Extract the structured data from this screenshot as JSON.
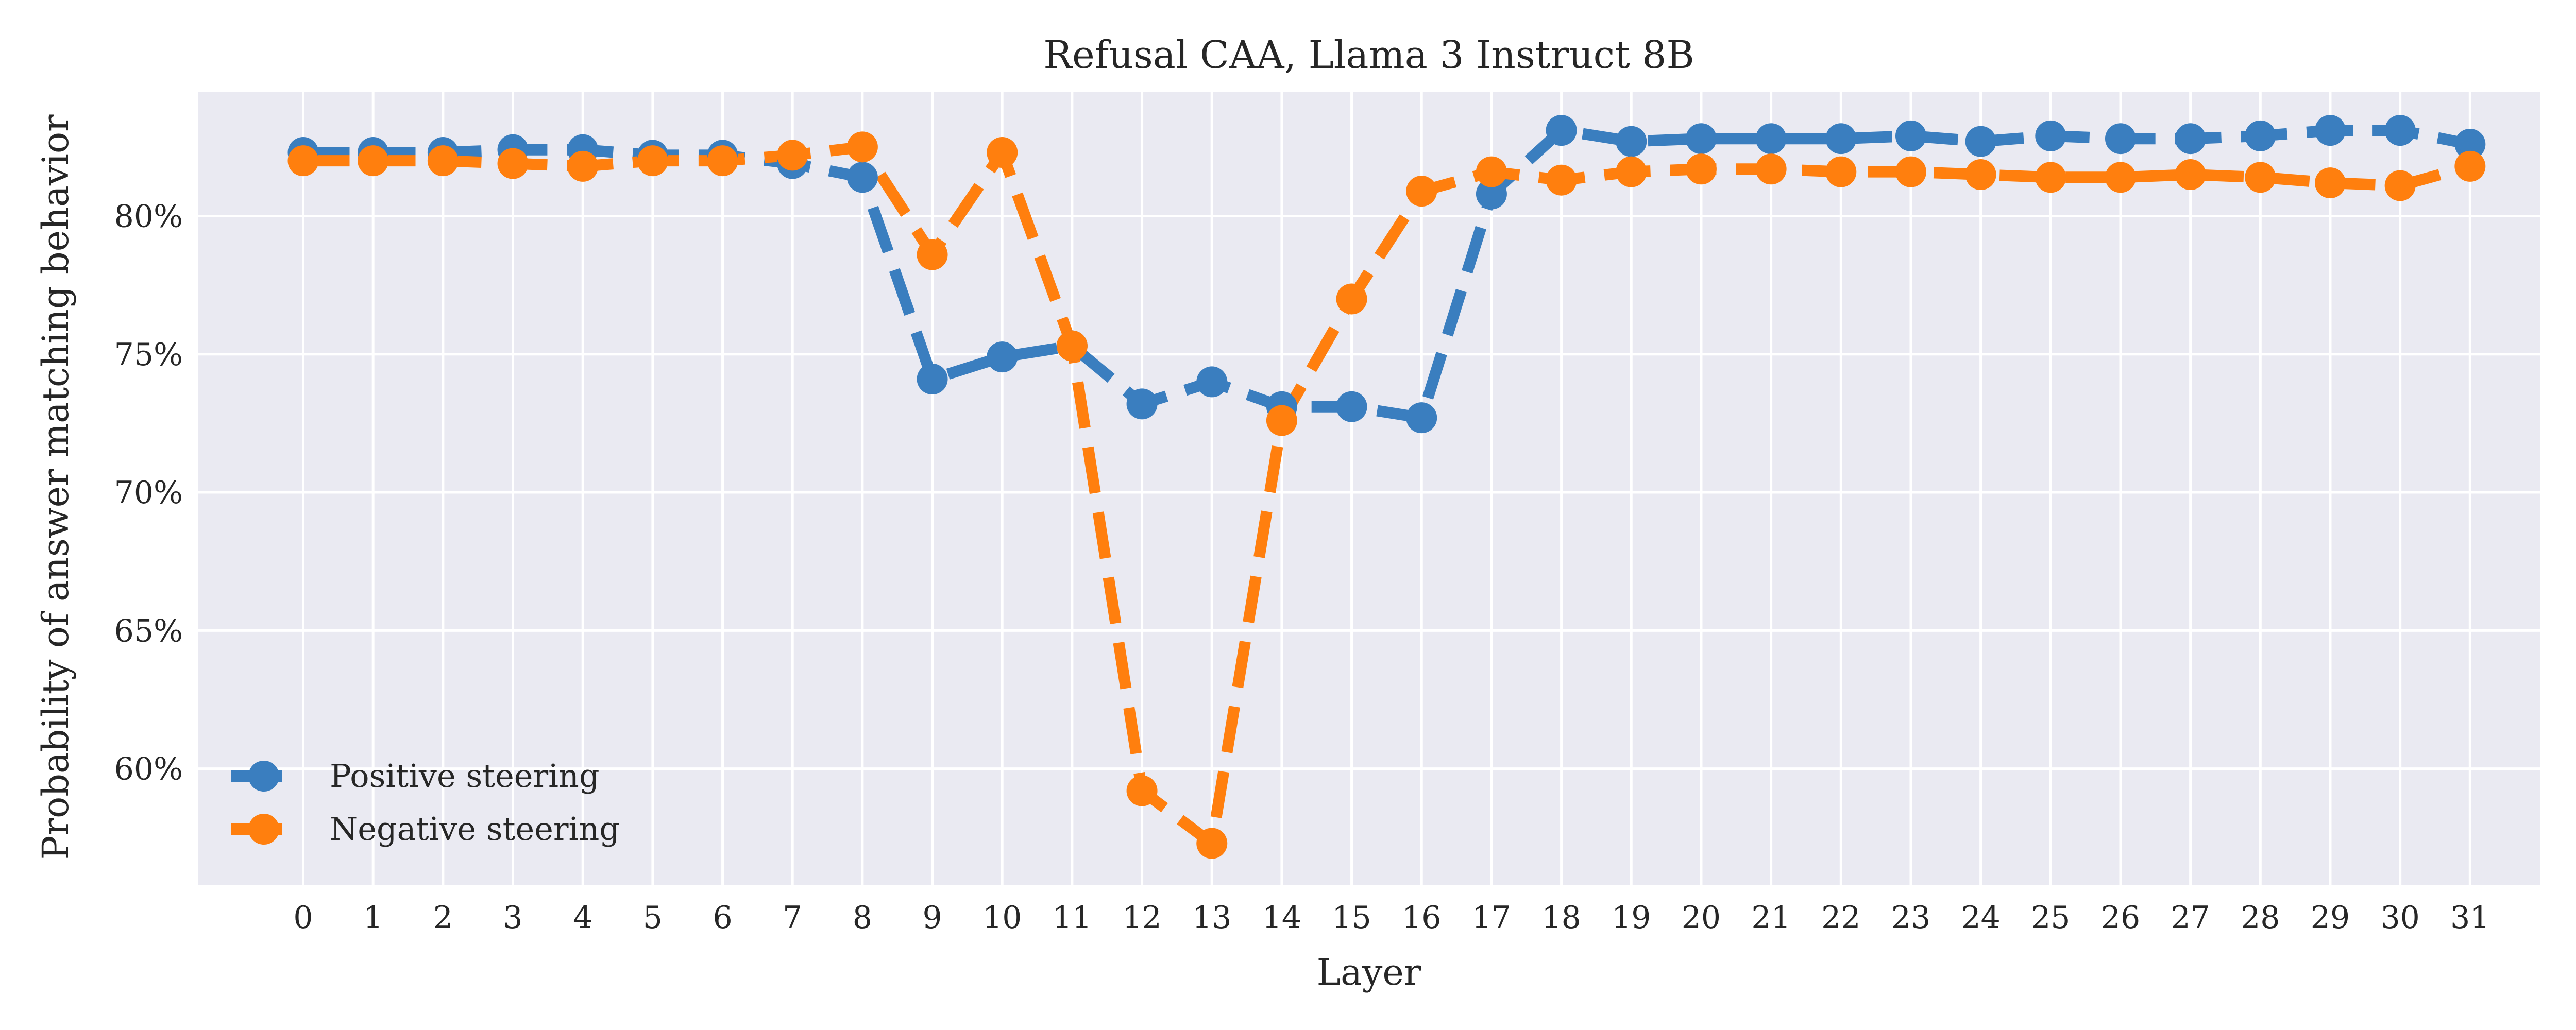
{
  "chart_data": {
    "type": "line",
    "title": "Refusal CAA, Llama 3 Instruct 8B",
    "xlabel": "Layer",
    "ylabel": "Probability of answer matching behavior",
    "x": [
      0,
      1,
      2,
      3,
      4,
      5,
      6,
      7,
      8,
      9,
      10,
      11,
      12,
      13,
      14,
      15,
      16,
      17,
      18,
      19,
      20,
      21,
      22,
      23,
      24,
      25,
      26,
      27,
      28,
      29,
      30,
      31
    ],
    "xlim": [
      -1.5,
      32
    ],
    "ylim": [
      0.558,
      0.845
    ],
    "yticks": [
      0.6,
      0.65,
      0.7,
      0.75,
      0.8
    ],
    "ytick_labels": [
      "60%",
      "65%",
      "70%",
      "75%",
      "80%"
    ],
    "grid": true,
    "legend_position": "lower-left",
    "series": [
      {
        "name": "Positive steering",
        "color": "#3a7ebf",
        "values": [
          0.823,
          0.823,
          0.823,
          0.824,
          0.824,
          0.822,
          0.822,
          0.819,
          0.814,
          0.741,
          0.749,
          0.753,
          0.732,
          0.74,
          0.731,
          0.731,
          0.727,
          0.808,
          0.831,
          0.827,
          0.828,
          0.828,
          0.828,
          0.829,
          0.827,
          0.829,
          0.828,
          0.828,
          0.829,
          0.831,
          0.831,
          0.826
        ]
      },
      {
        "name": "Negative steering",
        "color": "#ff7f0e",
        "values": [
          0.82,
          0.82,
          0.82,
          0.819,
          0.818,
          0.82,
          0.82,
          0.822,
          0.825,
          0.786,
          0.823,
          0.753,
          0.592,
          0.573,
          0.726,
          0.77,
          0.809,
          0.816,
          0.813,
          0.816,
          0.817,
          0.817,
          0.816,
          0.816,
          0.815,
          0.814,
          0.814,
          0.815,
          0.814,
          0.812,
          0.811,
          0.818
        ]
      }
    ]
  }
}
